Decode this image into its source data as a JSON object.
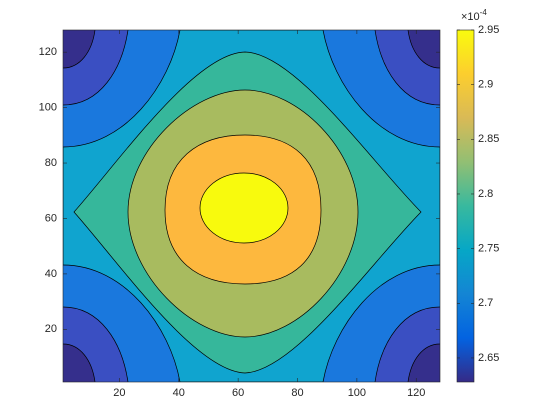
{
  "chart_data": {
    "type": "contour",
    "xlim": [
      1,
      128
    ],
    "ylim": [
      1,
      128
    ],
    "xticks": [
      20,
      40,
      60,
      80,
      100,
      120
    ],
    "yticks": [
      20,
      40,
      60,
      80,
      100,
      120
    ],
    "band_colors": [
      "#352f8c",
      "#3a4fc2",
      "#1a78dd",
      "#10a4cf",
      "#36b79b",
      "#a8bb5f",
      "#fdb83e",
      "#f8fa0d"
    ],
    "colorbar": {
      "clim": [
        2.628,
        2.95
      ],
      "ticks": [
        2.65,
        2.7,
        2.75,
        2.8,
        2.85,
        2.9,
        2.95
      ],
      "multiplier": "×10",
      "exponent": "-4",
      "colormap": [
        "#352a87",
        "#0363e1",
        "#1485d4",
        "#06a7c6",
        "#38b99e",
        "#92bf73",
        "#d9ba56",
        "#fcce2e",
        "#f9fb0e"
      ]
    }
  }
}
